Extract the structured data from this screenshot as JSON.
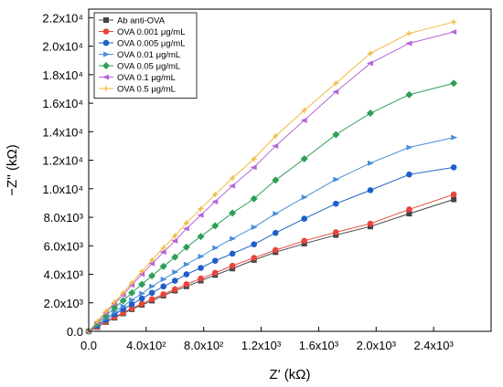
{
  "chart_data": {
    "type": "scatter",
    "xlabel": "Z' (kΩ)",
    "ylabel": "−Z'' (kΩ)",
    "xlim": [
      0,
      2800
    ],
    "ylim": [
      0,
      22600
    ],
    "grid": false,
    "legend_position": "top-left",
    "x_ticks": [
      {
        "value": 0,
        "label": "0.0"
      },
      {
        "value": 400,
        "label": "4.0x10²"
      },
      {
        "value": 800,
        "label": "8.0x10²"
      },
      {
        "value": 1200,
        "label": "1.2x10³"
      },
      {
        "value": 1600,
        "label": "1.6x10³"
      },
      {
        "value": 2000,
        "label": "2.0x10³"
      },
      {
        "value": 2400,
        "label": "2.4x10³"
      }
    ],
    "y_ticks": [
      {
        "value": 0,
        "label": "0.0"
      },
      {
        "value": 2000,
        "label": "2.0x10³"
      },
      {
        "value": 4000,
        "label": "4.0x10³"
      },
      {
        "value": 6000,
        "label": "6.0x10³"
      },
      {
        "value": 8000,
        "label": "8.0x10³"
      },
      {
        "value": 10000,
        "label": "1.0x10⁴"
      },
      {
        "value": 12000,
        "label": "1.2x10⁴"
      },
      {
        "value": 14000,
        "label": "1.4x10⁴"
      },
      {
        "value": 16000,
        "label": "1.6x10⁴"
      },
      {
        "value": 18000,
        "label": "1.8x10⁴"
      },
      {
        "value": 20000,
        "label": "2.0x10⁴"
      },
      {
        "value": 22000,
        "label": "2.2x10⁴"
      }
    ],
    "series": [
      {
        "name": "Ab anti-OVA",
        "color": "#444444",
        "marker": "square",
        "x": [
          0,
          60,
          120,
          180,
          240,
          300,
          370,
          440,
          520,
          600,
          680,
          780,
          880,
          1000,
          1150,
          1300,
          1500,
          1720,
          1960,
          2230,
          2540
        ],
        "y": [
          0,
          300,
          650,
          950,
          1250,
          1550,
          1850,
          2150,
          2500,
          2850,
          3150,
          3550,
          3950,
          4400,
          5000,
          5550,
          6150,
          6750,
          7350,
          8250,
          9250
        ]
      },
      {
        "name": "OVA 0.001 μg/mL",
        "color": "#e8453c",
        "marker": "circle",
        "x": [
          0,
          60,
          120,
          180,
          240,
          300,
          370,
          440,
          520,
          600,
          680,
          780,
          880,
          1000,
          1150,
          1300,
          1500,
          1720,
          1960,
          2230,
          2540
        ],
        "y": [
          0,
          320,
          680,
          1000,
          1300,
          1620,
          1930,
          2250,
          2600,
          2950,
          3300,
          3700,
          4100,
          4600,
          5150,
          5700,
          6350,
          6950,
          7550,
          8550,
          9600
        ]
      },
      {
        "name": "OVA 0.005 μg/mL",
        "color": "#1f5fc8",
        "marker": "circle",
        "x": [
          0,
          60,
          120,
          180,
          240,
          300,
          370,
          440,
          520,
          600,
          680,
          780,
          880,
          1000,
          1150,
          1300,
          1500,
          1720,
          1960,
          2230,
          2540
        ],
        "y": [
          0,
          400,
          800,
          1200,
          1550,
          1900,
          2300,
          2700,
          3150,
          3550,
          4000,
          4450,
          4950,
          5450,
          6100,
          6900,
          7900,
          8950,
          9900,
          11000,
          11500
        ]
      },
      {
        "name": "OVA  0.01 μg/mL",
        "color": "#4a8fd8",
        "marker": "triangle-right",
        "x": [
          0,
          60,
          120,
          180,
          240,
          300,
          370,
          440,
          520,
          600,
          680,
          780,
          880,
          1000,
          1150,
          1300,
          1500,
          1720,
          1960,
          2230,
          2540
        ],
        "y": [
          0,
          450,
          900,
          1350,
          1750,
          2200,
          2650,
          3150,
          3650,
          4150,
          4700,
          5250,
          5850,
          6500,
          7300,
          8250,
          9400,
          10650,
          11800,
          12900,
          13600
        ]
      },
      {
        "name": "OVA 0.05 μg/mL",
        "color": "#2e9e58",
        "marker": "diamond",
        "x": [
          0,
          60,
          120,
          180,
          240,
          300,
          370,
          440,
          520,
          600,
          680,
          780,
          880,
          1000,
          1150,
          1300,
          1500,
          1720,
          1960,
          2230,
          2540
        ],
        "y": [
          0,
          550,
          1100,
          1650,
          2150,
          2700,
          3300,
          3900,
          4550,
          5200,
          5900,
          6650,
          7400,
          8300,
          9300,
          10600,
          12100,
          13800,
          15300,
          16600,
          17400
        ]
      },
      {
        "name": "OVA 0.1 μg/mL",
        "color": "#b565d8",
        "marker": "triangle-left",
        "x": [
          0,
          60,
          120,
          180,
          240,
          300,
          370,
          440,
          520,
          600,
          680,
          780,
          880,
          1000,
          1150,
          1300,
          1500,
          1720,
          1960,
          2230,
          2540
        ],
        "y": [
          0,
          650,
          1300,
          1950,
          2550,
          3250,
          4000,
          4750,
          5550,
          6350,
          7200,
          8150,
          9100,
          10200,
          11500,
          13000,
          14800,
          16800,
          18800,
          20200,
          21000
        ]
      },
      {
        "name": "OVA 0.5 μg/mL",
        "color": "#f0b93a",
        "marker": "plus",
        "x": [
          0,
          60,
          120,
          180,
          240,
          300,
          370,
          440,
          520,
          600,
          680,
          780,
          880,
          1000,
          1150,
          1300,
          1500,
          1720,
          1960,
          2230,
          2540
        ],
        "y": [
          0,
          700,
          1400,
          2050,
          2700,
          3400,
          4200,
          5000,
          5850,
          6700,
          7600,
          8600,
          9600,
          10750,
          12100,
          13700,
          15500,
          17400,
          19500,
          20900,
          21700
        ]
      }
    ]
  }
}
